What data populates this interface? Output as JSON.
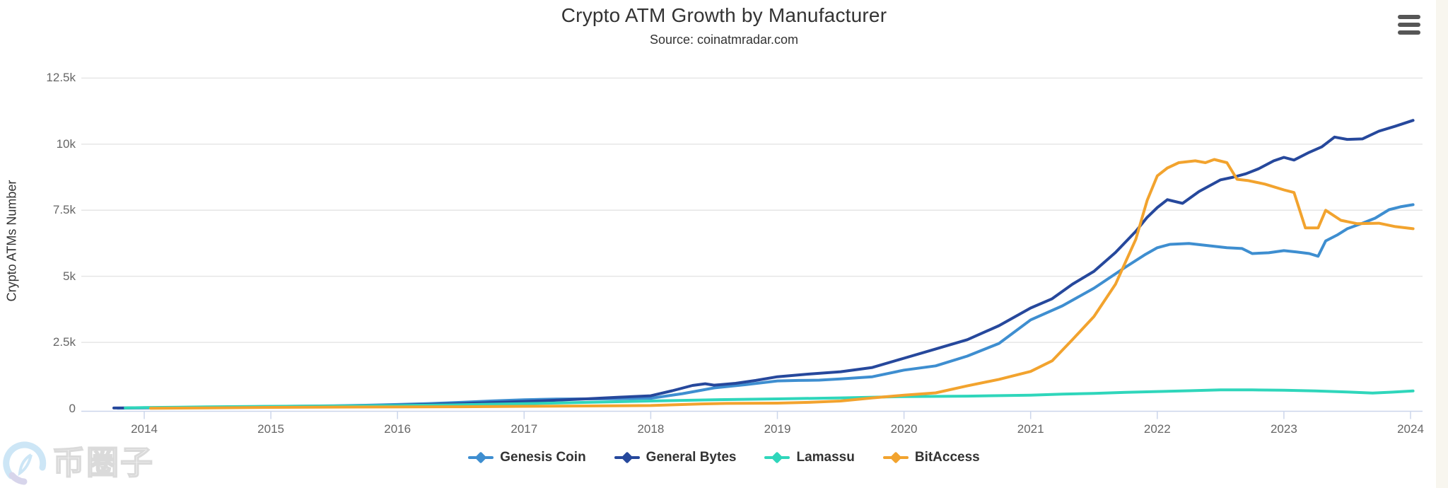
{
  "header": {
    "title": "Crypto ATM Growth by Manufacturer",
    "subtitle": "Source: coinatmradar.com"
  },
  "context_menu": {
    "icon": "hamburger-icon"
  },
  "watermark": {
    "text": "币圈子"
  },
  "chart_data": {
    "type": "line",
    "title": "Crypto ATM Growth by Manufacturer",
    "subtitle": "Source: coinatmradar.com",
    "xlabel": "",
    "ylabel": "Crypto ATMs Number",
    "ylim": [
      0,
      13000
    ],
    "xlim": [
      2013.5,
      2024.1
    ],
    "grid": "horizontal-only",
    "legend_position": "bottom-center",
    "y_ticks": [
      {
        "value": 0,
        "label": "0"
      },
      {
        "value": 2500,
        "label": "2.5k"
      },
      {
        "value": 5000,
        "label": "5k"
      },
      {
        "value": 7500,
        "label": "7.5k"
      },
      {
        "value": 10000,
        "label": "10k"
      },
      {
        "value": 12500,
        "label": "12.5k"
      }
    ],
    "x_ticks": [
      {
        "value": 2014,
        "label": "2014"
      },
      {
        "value": 2015,
        "label": "2015"
      },
      {
        "value": 2016,
        "label": "2016"
      },
      {
        "value": 2017,
        "label": "2017"
      },
      {
        "value": 2018,
        "label": "2018"
      },
      {
        "value": 2019,
        "label": "2019"
      },
      {
        "value": 2020,
        "label": "2020"
      },
      {
        "value": 2021,
        "label": "2021"
      },
      {
        "value": 2022,
        "label": "2022"
      },
      {
        "value": 2023,
        "label": "2023"
      },
      {
        "value": 2024,
        "label": "2024"
      }
    ],
    "series": [
      {
        "name": "Genesis Coin",
        "color": "#3e8ed0",
        "points": [
          [
            2013.79,
            10
          ],
          [
            2014,
            25
          ],
          [
            2014.25,
            35
          ],
          [
            2014.5,
            45
          ],
          [
            2014.75,
            60
          ],
          [
            2015,
            75
          ],
          [
            2015.25,
            85
          ],
          [
            2015.5,
            100
          ],
          [
            2015.75,
            120
          ],
          [
            2016,
            150
          ],
          [
            2016.25,
            185
          ],
          [
            2016.5,
            230
          ],
          [
            2016.75,
            285
          ],
          [
            2017,
            330
          ],
          [
            2017.25,
            355
          ],
          [
            2017.5,
            360
          ],
          [
            2017.75,
            370
          ],
          [
            2018,
            385
          ],
          [
            2018.25,
            560
          ],
          [
            2018.5,
            775
          ],
          [
            2018.75,
            900
          ],
          [
            2019,
            1040
          ],
          [
            2019.17,
            1060
          ],
          [
            2019.33,
            1070
          ],
          [
            2019.5,
            1120
          ],
          [
            2019.75,
            1200
          ],
          [
            2020,
            1450
          ],
          [
            2020.25,
            1610
          ],
          [
            2020.5,
            1980
          ],
          [
            2020.75,
            2460
          ],
          [
            2021,
            3350
          ],
          [
            2021.25,
            3880
          ],
          [
            2021.5,
            4550
          ],
          [
            2021.75,
            5350
          ],
          [
            2021.9,
            5810
          ],
          [
            2022,
            6080
          ],
          [
            2022.1,
            6210
          ],
          [
            2022.25,
            6240
          ],
          [
            2022.4,
            6160
          ],
          [
            2022.55,
            6080
          ],
          [
            2022.67,
            6050
          ],
          [
            2022.75,
            5860
          ],
          [
            2022.88,
            5890
          ],
          [
            2023,
            5970
          ],
          [
            2023.1,
            5920
          ],
          [
            2023.2,
            5860
          ],
          [
            2023.27,
            5760
          ],
          [
            2023.33,
            6340
          ],
          [
            2023.42,
            6560
          ],
          [
            2023.5,
            6800
          ],
          [
            2023.62,
            7010
          ],
          [
            2023.72,
            7200
          ],
          [
            2023.83,
            7520
          ],
          [
            2023.92,
            7630
          ],
          [
            2024.02,
            7710
          ]
        ]
      },
      {
        "name": "General Bytes",
        "color": "#26489c",
        "points": [
          [
            2013.76,
            15
          ],
          [
            2013.9,
            22
          ],
          [
            2014,
            25
          ],
          [
            2014.25,
            30
          ],
          [
            2014.5,
            40
          ],
          [
            2014.75,
            50
          ],
          [
            2015,
            60
          ],
          [
            2015.25,
            70
          ],
          [
            2015.5,
            85
          ],
          [
            2015.75,
            100
          ],
          [
            2016,
            120
          ],
          [
            2016.25,
            150
          ],
          [
            2016.5,
            185
          ],
          [
            2016.75,
            225
          ],
          [
            2017,
            265
          ],
          [
            2017.25,
            310
          ],
          [
            2017.5,
            365
          ],
          [
            2017.75,
            425
          ],
          [
            2018,
            480
          ],
          [
            2018.17,
            670
          ],
          [
            2018.33,
            870
          ],
          [
            2018.43,
            935
          ],
          [
            2018.5,
            880
          ],
          [
            2018.67,
            950
          ],
          [
            2018.83,
            1060
          ],
          [
            2019,
            1200
          ],
          [
            2019.25,
            1300
          ],
          [
            2019.5,
            1390
          ],
          [
            2019.75,
            1550
          ],
          [
            2020,
            1900
          ],
          [
            2020.25,
            2250
          ],
          [
            2020.5,
            2600
          ],
          [
            2020.75,
            3130
          ],
          [
            2021,
            3800
          ],
          [
            2021.17,
            4150
          ],
          [
            2021.33,
            4700
          ],
          [
            2021.5,
            5190
          ],
          [
            2021.67,
            5900
          ],
          [
            2021.83,
            6700
          ],
          [
            2021.92,
            7230
          ],
          [
            2022,
            7600
          ],
          [
            2022.08,
            7900
          ],
          [
            2022.2,
            7760
          ],
          [
            2022.33,
            8210
          ],
          [
            2022.5,
            8650
          ],
          [
            2022.6,
            8750
          ],
          [
            2022.7,
            8880
          ],
          [
            2022.8,
            9070
          ],
          [
            2022.92,
            9370
          ],
          [
            2023,
            9500
          ],
          [
            2023.08,
            9400
          ],
          [
            2023.2,
            9690
          ],
          [
            2023.3,
            9900
          ],
          [
            2023.4,
            10270
          ],
          [
            2023.5,
            10180
          ],
          [
            2023.62,
            10200
          ],
          [
            2023.75,
            10490
          ],
          [
            2023.88,
            10680
          ],
          [
            2024.02,
            10900
          ]
        ]
      },
      {
        "name": "Lamassu",
        "color": "#2fd6bb",
        "points": [
          [
            2013.85,
            20
          ],
          [
            2014,
            35
          ],
          [
            2014.5,
            60
          ],
          [
            2015,
            80
          ],
          [
            2015.5,
            95
          ],
          [
            2016,
            110
          ],
          [
            2016.5,
            140
          ],
          [
            2017,
            180
          ],
          [
            2017.5,
            230
          ],
          [
            2018,
            280
          ],
          [
            2018.5,
            330
          ],
          [
            2019,
            360
          ],
          [
            2019.5,
            400
          ],
          [
            2020,
            450
          ],
          [
            2020.5,
            465
          ],
          [
            2021,
            500
          ],
          [
            2021.25,
            540
          ],
          [
            2021.5,
            570
          ],
          [
            2021.75,
            610
          ],
          [
            2022,
            640
          ],
          [
            2022.25,
            670
          ],
          [
            2022.5,
            700
          ],
          [
            2022.75,
            700
          ],
          [
            2023,
            690
          ],
          [
            2023.25,
            665
          ],
          [
            2023.5,
            620
          ],
          [
            2023.7,
            580
          ],
          [
            2023.85,
            615
          ],
          [
            2024.02,
            660
          ]
        ]
      },
      {
        "name": "BitAccess",
        "color": "#f2a32e",
        "points": [
          [
            2014.05,
            5
          ],
          [
            2014.5,
            20
          ],
          [
            2015,
            40
          ],
          [
            2015.5,
            50
          ],
          [
            2016,
            55
          ],
          [
            2016.5,
            65
          ],
          [
            2017,
            80
          ],
          [
            2017.5,
            95
          ],
          [
            2018,
            110
          ],
          [
            2018.2,
            140
          ],
          [
            2018.4,
            170
          ],
          [
            2018.6,
            190
          ],
          [
            2019,
            200
          ],
          [
            2019.25,
            230
          ],
          [
            2019.5,
            280
          ],
          [
            2019.75,
            400
          ],
          [
            2020,
            500
          ],
          [
            2020.25,
            590
          ],
          [
            2020.5,
            855
          ],
          [
            2020.75,
            1100
          ],
          [
            2021,
            1400
          ],
          [
            2021.17,
            1800
          ],
          [
            2021.33,
            2600
          ],
          [
            2021.5,
            3480
          ],
          [
            2021.67,
            4700
          ],
          [
            2021.83,
            6400
          ],
          [
            2021.92,
            7870
          ],
          [
            2022,
            8800
          ],
          [
            2022.08,
            9100
          ],
          [
            2022.17,
            9300
          ],
          [
            2022.3,
            9370
          ],
          [
            2022.38,
            9300
          ],
          [
            2022.45,
            9420
          ],
          [
            2022.55,
            9300
          ],
          [
            2022.63,
            8670
          ],
          [
            2022.72,
            8620
          ],
          [
            2022.85,
            8490
          ],
          [
            2023,
            8270
          ],
          [
            2023.08,
            8170
          ],
          [
            2023.17,
            6830
          ],
          [
            2023.27,
            6830
          ],
          [
            2023.33,
            7500
          ],
          [
            2023.45,
            7120
          ],
          [
            2023.58,
            6990
          ],
          [
            2023.75,
            7010
          ],
          [
            2023.88,
            6880
          ],
          [
            2024.02,
            6800
          ]
        ]
      }
    ],
    "colors": {
      "gridline": "#e6e6e6",
      "axis_line": "#ccd6eb",
      "tick_label": "#666666",
      "title_text": "#333333"
    }
  }
}
